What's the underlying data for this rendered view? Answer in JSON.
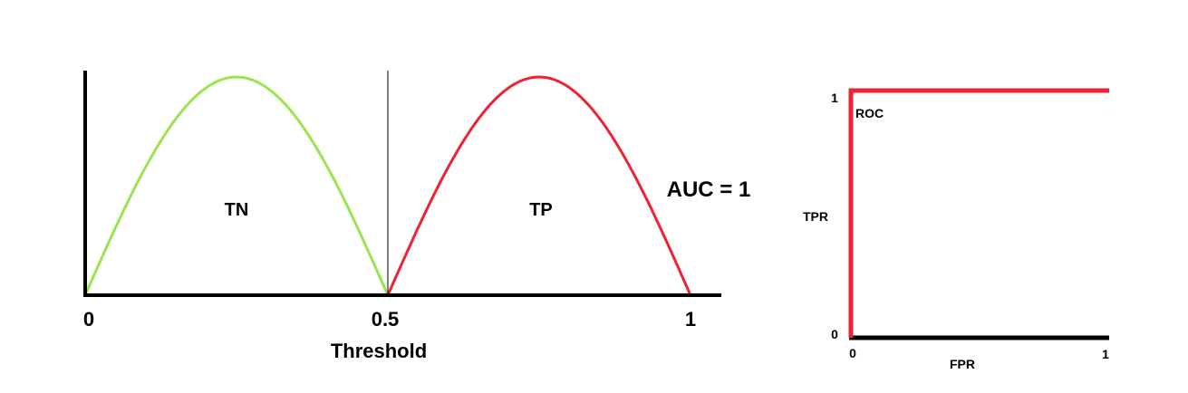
{
  "chart_data": [
    {
      "type": "line",
      "xlabel": "Threshold",
      "xlim": [
        0,
        1
      ],
      "x_ticks": [
        "0",
        "0.5",
        "1"
      ],
      "threshold": 0.5,
      "series": [
        {
          "region_label": "TN",
          "x": [
            0,
            0.25,
            0.5
          ],
          "peak": 1,
          "color": "#99e550"
        },
        {
          "region_label": "TP",
          "x": [
            0.5,
            0.75,
            1
          ],
          "peak": 1,
          "color": "#ee2233"
        }
      ],
      "annotation": "AUC = 1"
    },
    {
      "type": "line",
      "title": "ROC",
      "xlabel": "FPR",
      "ylabel": "TPR",
      "xlim": [
        0,
        1
      ],
      "ylim": [
        0,
        1
      ],
      "x_ticks": [
        "0",
        "1"
      ],
      "y_ticks": [
        "0",
        "1"
      ],
      "series": [
        {
          "x": [
            0,
            0,
            1
          ],
          "y": [
            0,
            1,
            1
          ],
          "color": "#ee2233"
        }
      ]
    }
  ]
}
